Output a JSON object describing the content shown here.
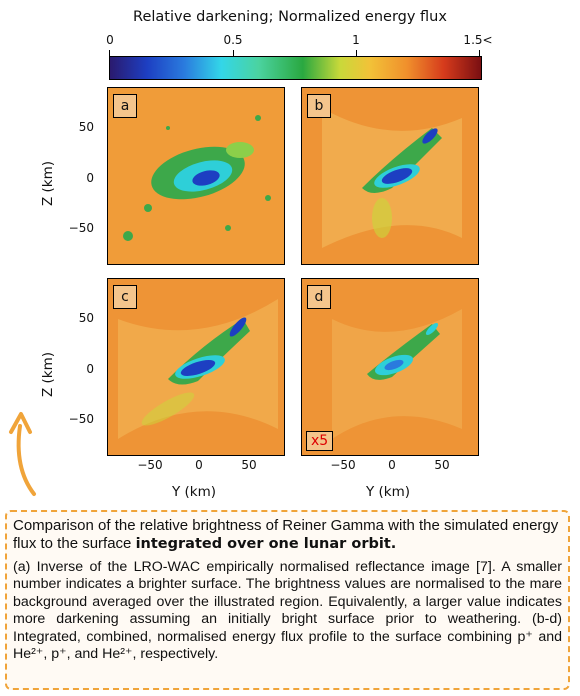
{
  "colorbar": {
    "title": "Relative darkening; Normalized energy flux",
    "ticks": [
      "0",
      "0.5",
      "1",
      "1.5<"
    ]
  },
  "panels": [
    {
      "label": "a",
      "scale_note": ""
    },
    {
      "label": "b",
      "scale_note": ""
    },
    {
      "label": "c",
      "scale_note": ""
    },
    {
      "label": "d",
      "scale_note": "x5"
    }
  ],
  "axes": {
    "ylabel": "Z (km)",
    "xlabel": "Y (km)",
    "yticks": [
      "50",
      "0",
      "−50"
    ],
    "xticks": [
      "−50",
      "0",
      "50"
    ]
  },
  "caption": {
    "head_plain": "Comparison of the relative brightness of Reiner Gamma with the simulated energy flux to the surface ",
    "head_bold": "integrated over one lunar orbit.",
    "body": "(a) Inverse of the LRO-WAC empirically normalised reflectance image [7]. A smaller number indicates a brighter surface. The brightness values are normalised to the mare background averaged over the illustrated region. Equivalently, a larger value indicates more darkening assuming an initially bright surface prior to weathering. (b-d) Integrated, combined, normalised energy flux profile to the surface combining p⁺ and He²⁺, p⁺, and He²⁺, respectively."
  },
  "colors": {
    "background_orange": "#ef9a3a",
    "accent_arrow": "#f0a43a",
    "caption_border": "#f0a43a",
    "x5_text": "#dd0000"
  }
}
